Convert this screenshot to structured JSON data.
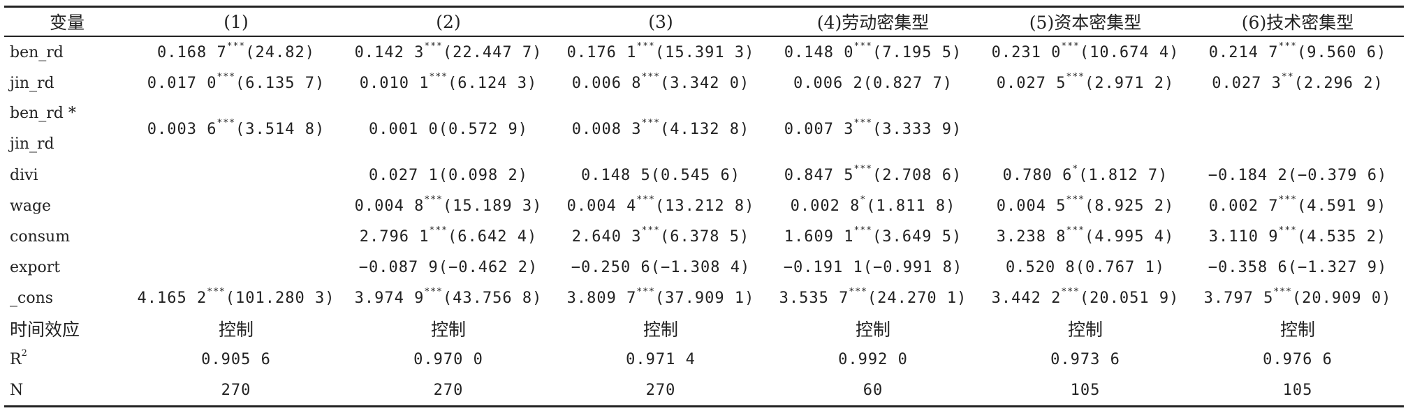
{
  "header": [
    "变量",
    "(1)",
    "(2)",
    "(3)",
    "(4)劳动密集型",
    "(5)资本密集型",
    "(6)技术密集型"
  ],
  "rows": [
    {
      "var": "ben_rd",
      "cells": [
        {
          "v": "0.168 7",
          "s": "***",
          "t": "(24.82)"
        },
        {
          "v": "0.142 3",
          "s": "***",
          "t": "(22.447 7)"
        },
        {
          "v": "0.176 1",
          "s": "***",
          "t": "(15.391 3)"
        },
        {
          "v": "0.148 0",
          "s": "***",
          "t": "(7.195 5)"
        },
        {
          "v": "0.231 0",
          "s": "***",
          "t": "(10.674 4)"
        },
        {
          "v": "0.214 7",
          "s": "***",
          "t": "(9.560 6)"
        }
      ]
    },
    {
      "var": "jin_rd",
      "cells": [
        {
          "v": "0.017 0",
          "s": "***",
          "t": "(6.135 7)"
        },
        {
          "v": "0.010 1",
          "s": "***",
          "t": "(6.124 3)"
        },
        {
          "v": "0.006 8",
          "s": "***",
          "t": "(3.342 0)"
        },
        {
          "v": "0.006 2",
          "s": "",
          "t": "(0.827 7)"
        },
        {
          "v": "0.027 5",
          "s": "***",
          "t": "(2.971 2)"
        },
        {
          "v": "0.027 3",
          "s": "**",
          "t": "(2.296 2)"
        }
      ]
    },
    {
      "var": "ben_rd *",
      "var2": "jin_rd",
      "cells": [
        {
          "v": "0.003 6",
          "s": "***",
          "t": "(3.514 8)"
        },
        {
          "v": "0.001 0",
          "s": "",
          "t": "(0.572 9)"
        },
        {
          "v": "0.008 3",
          "s": "***",
          "t": "(4.132 8)"
        },
        {
          "v": "0.007 3",
          "s": "***",
          "t": "(3.333 9)"
        },
        {
          "v": "",
          "s": "",
          "t": ""
        },
        {
          "v": "",
          "s": "",
          "t": ""
        }
      ]
    },
    {
      "var": "divi",
      "cells": [
        {
          "v": "",
          "s": "",
          "t": ""
        },
        {
          "v": "0.027 1",
          "s": "",
          "t": "(0.098 2)"
        },
        {
          "v": "0.148 5",
          "s": "",
          "t": "(0.545 6)"
        },
        {
          "v": "0.847 5",
          "s": "***",
          "t": "(2.708 6)"
        },
        {
          "v": "0.780 6",
          "s": "*",
          "t": "(1.812 7)"
        },
        {
          "v": "−0.184 2",
          "s": "",
          "t": "(−0.379 6)"
        }
      ]
    },
    {
      "var": "wage",
      "cells": [
        {
          "v": "",
          "s": "",
          "t": ""
        },
        {
          "v": "0.004 8",
          "s": "***",
          "t": "(15.189 3)"
        },
        {
          "v": "0.004 4",
          "s": "***",
          "t": "(13.212 8)"
        },
        {
          "v": "0.002 8",
          "s": "*",
          "t": "(1.811 8)"
        },
        {
          "v": "0.004 5",
          "s": "***",
          "t": "(8.925 2)"
        },
        {
          "v": "0.002 7",
          "s": "***",
          "t": "(4.591 9)"
        }
      ]
    },
    {
      "var": "consum",
      "cells": [
        {
          "v": "",
          "s": "",
          "t": ""
        },
        {
          "v": "2.796 1",
          "s": "***",
          "t": "(6.642 4)"
        },
        {
          "v": "2.640 3",
          "s": "***",
          "t": "(6.378 5)"
        },
        {
          "v": "1.609 1",
          "s": "***",
          "t": "(3.649 5)"
        },
        {
          "v": "3.238 8",
          "s": "***",
          "t": "(4.995 4)"
        },
        {
          "v": "3.110 9",
          "s": "***",
          "t": "(4.535 2)"
        }
      ]
    },
    {
      "var": "export",
      "cells": [
        {
          "v": "",
          "s": "",
          "t": ""
        },
        {
          "v": "−0.087 9",
          "s": "",
          "t": "(−0.462 2)"
        },
        {
          "v": "−0.250 6",
          "s": "",
          "t": "(−1.308 4)"
        },
        {
          "v": "−0.191 1",
          "s": "",
          "t": "(−0.991 8)"
        },
        {
          "v": "0.520 8",
          "s": "",
          "t": "(0.767 1)"
        },
        {
          "v": "−0.358 6",
          "s": "",
          "t": "(−1.327 9)"
        }
      ]
    },
    {
      "var": "_cons",
      "cells": [
        {
          "v": "4.165 2",
          "s": "***",
          "t": "(101.280 3)"
        },
        {
          "v": "3.974 9",
          "s": "***",
          "t": "(43.756 8)"
        },
        {
          "v": "3.809 7",
          "s": "***",
          "t": "(37.909 1)"
        },
        {
          "v": "3.535 7",
          "s": "***",
          "t": "(24.270 1)"
        },
        {
          "v": "3.442 2",
          "s": "***",
          "t": "(20.051 9)"
        },
        {
          "v": "3.797 5",
          "s": "***",
          "t": "(20.909 0)"
        }
      ]
    }
  ],
  "time_effect": {
    "label": "时间效应",
    "values": [
      "控制",
      "控制",
      "控制",
      "控制",
      "控制",
      "控制"
    ]
  },
  "r2": {
    "label": "R",
    "sup": "2",
    "values": [
      "0.905 6",
      "0.970 0",
      "0.971 4",
      "0.992 0",
      "0.973 6",
      "0.976 6"
    ]
  },
  "n": {
    "label": "N",
    "values": [
      "270",
      "270",
      "270",
      "60",
      "105",
      "105"
    ]
  }
}
